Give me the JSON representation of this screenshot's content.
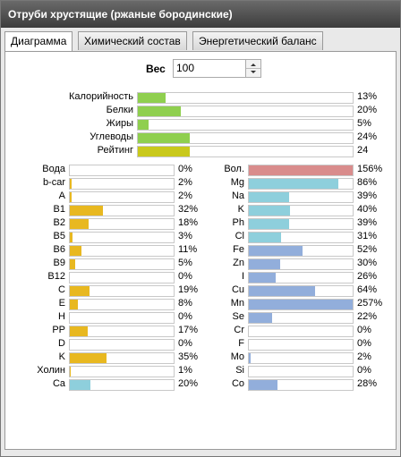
{
  "window": {
    "title": "Отруби хрустящие (ржаные бородинские)"
  },
  "tabs": [
    "Диаграмма",
    "Химический состав",
    "Энергетический баланс"
  ],
  "weight": {
    "label": "Вес",
    "value": "100"
  },
  "summary": {
    "labels": [
      "Калорийность",
      "Белки",
      "Жиры",
      "Углеводы",
      "Рейтинг"
    ],
    "values": [
      13,
      20,
      5,
      24,
      24
    ],
    "value_labels": [
      "13%",
      "20%",
      "5%",
      "24%",
      "24"
    ],
    "colors": [
      "#8fcf4f",
      "#8fcf4f",
      "#8fcf4f",
      "#8fcf4f",
      "#c9c91c"
    ]
  },
  "vitamins": {
    "labels": [
      "Вода",
      "b-car",
      "A",
      "B1",
      "B2",
      "B5",
      "B6",
      "B9",
      "B12",
      "C",
      "E",
      "H",
      "PP",
      "D",
      "K",
      "Холин",
      "Ca"
    ],
    "values": [
      0,
      2,
      2,
      32,
      18,
      3,
      11,
      5,
      0,
      19,
      8,
      0,
      17,
      0,
      35,
      1,
      20
    ],
    "value_labels": [
      "0%",
      "2%",
      "2%",
      "32%",
      "18%",
      "3%",
      "11%",
      "5%",
      "0%",
      "19%",
      "8%",
      "0%",
      "17%",
      "0%",
      "35%",
      "1%",
      "20%"
    ],
    "colors": [
      "#e8b820",
      "#e8b820",
      "#e8b820",
      "#e8b820",
      "#e8b820",
      "#e8b820",
      "#e8b820",
      "#e8b820",
      "#e8b820",
      "#e8b820",
      "#e8b820",
      "#e8b820",
      "#e8b820",
      "#e8b820",
      "#e8b820",
      "#e8b820",
      "#8ecfdc"
    ]
  },
  "minerals": {
    "labels": [
      "Вол.",
      "Mg",
      "Na",
      "K",
      "Ph",
      "Cl",
      "Fe",
      "Zn",
      "I",
      "Cu",
      "Mn",
      "Se",
      "Cr",
      "F",
      "Mo",
      "Si",
      "Co"
    ],
    "values": [
      156,
      86,
      39,
      40,
      39,
      31,
      52,
      30,
      26,
      64,
      257,
      22,
      0,
      0,
      2,
      0,
      28
    ],
    "value_labels": [
      "156%",
      "86%",
      "39%",
      "40%",
      "39%",
      "31%",
      "52%",
      "30%",
      "26%",
      "64%",
      "257%",
      "22%",
      "0%",
      "0%",
      "2%",
      "0%",
      "28%"
    ],
    "colors": [
      "#d98c8c",
      "#8ecfdc",
      "#8ecfdc",
      "#8ecfdc",
      "#8ecfdc",
      "#8ecfdc",
      "#92aedb",
      "#92aedb",
      "#92aedb",
      "#92aedb",
      "#92aedb",
      "#92aedb",
      "#92aedb",
      "#92aedb",
      "#92aedb",
      "#92aedb",
      "#92aedb"
    ]
  }
}
